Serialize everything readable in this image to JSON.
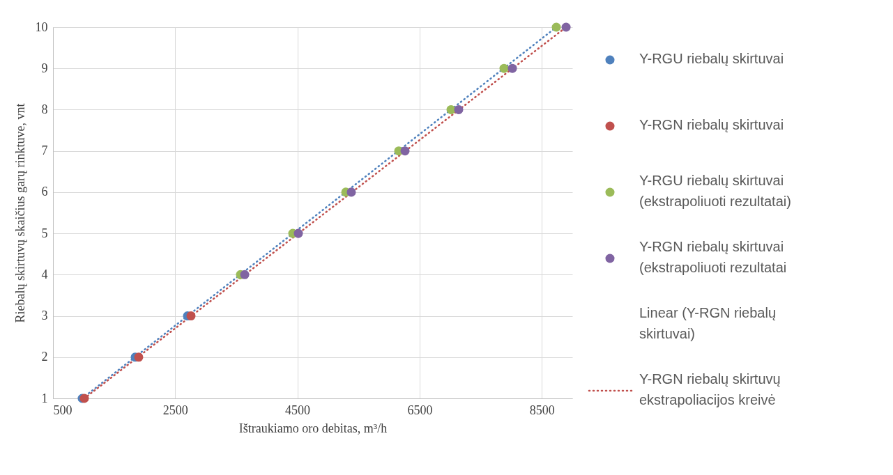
{
  "chart_data": {
    "type": "scatter",
    "xlabel": "Ištraukiamo oro debitas, m³/h",
    "ylabel": "Riebalų skirtuvų skaičius garų rinktuve, vnt",
    "xlim": [
      500,
      9000
    ],
    "xticks": [
      500,
      2500,
      4500,
      6500,
      8500
    ],
    "ylim": [
      1,
      10
    ],
    "yticks": [
      1,
      2,
      3,
      4,
      5,
      6,
      7,
      8,
      9,
      10
    ],
    "grid": true,
    "legend": "right",
    "series": [
      {
        "name": "Y-RGU riebalų skirtuvai",
        "color": "#4f81bd",
        "marker": "circle",
        "x": [
          979,
          1846,
          2702
        ],
        "values": [
          1,
          2,
          3
        ]
      },
      {
        "name": "Y-RGN riebalų skirtuvai",
        "color": "#c0504d",
        "marker": "circle",
        "x": [
          1013,
          1903,
          2759
        ],
        "values": [
          1,
          2,
          3
        ]
      },
      {
        "name": "Y-RGU riebalų skirtuvai (ekstrapoliuoti rezultatai)",
        "color": "#9bbb59",
        "marker": "circle",
        "x": [
          3569,
          4425,
          5292,
          6159,
          7015,
          7882,
          8738
        ],
        "values": [
          4,
          5,
          6,
          7,
          8,
          9,
          10
        ]
      },
      {
        "name": "Y-RGN riebalų skirtuvai (ekstrapoliuoti rezultatai",
        "color": "#8064a2",
        "marker": "circle",
        "x": [
          3638,
          4516,
          5383,
          6262,
          7140,
          8019,
          8898
        ],
        "values": [
          4,
          5,
          6,
          7,
          8,
          9,
          10
        ]
      },
      {
        "type": "line",
        "color": "#4f81bd",
        "line_style": "dotted",
        "marker": "none",
        "x": [
          979,
          8738
        ],
        "values": [
          1,
          10
        ]
      },
      {
        "type": "line",
        "name": "Y-RGN riebalų skirtuvų ekstrapoliacijos kreivė",
        "color": "#c0504d",
        "line_style": "dotted",
        "marker": "none",
        "x": [
          1013,
          8898
        ],
        "values": [
          1,
          10
        ]
      }
    ],
    "annotations": [
      "Linear (Y-RGN riebalų skirtuvai)"
    ]
  }
}
